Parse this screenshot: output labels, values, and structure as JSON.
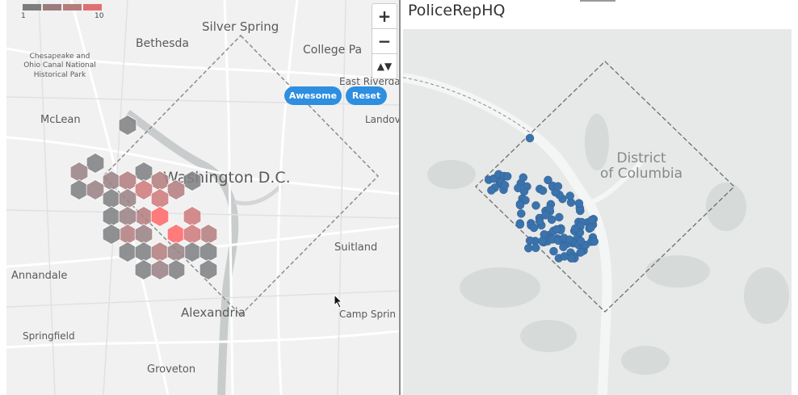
{
  "left_map": {
    "places": [
      {
        "name": "Silver Spring"
      },
      {
        "name": "Bethesda"
      },
      {
        "name": "College Pa"
      },
      {
        "name": "Chesapeake and"
      },
      {
        "name": "Ohio Canal National"
      },
      {
        "name": "Historical Park"
      },
      {
        "name": "East Riverda"
      },
      {
        "name": "McLean"
      },
      {
        "name": "Landov"
      },
      {
        "name": "Washington D.C."
      },
      {
        "name": "Suitland"
      },
      {
        "name": "Annandale"
      },
      {
        "name": "Alexandria"
      },
      {
        "name": "Camp Sprin"
      },
      {
        "name": "Springfield"
      },
      {
        "name": "Groveton"
      }
    ],
    "legend": {
      "min_label": "1",
      "max_label": "10",
      "colors": [
        "#7d7d7d",
        "#9a7c7c",
        "#b57c7c",
        "#e07070"
      ]
    },
    "zoom": {
      "in": "+",
      "out": "−",
      "compass": "▲▼"
    },
    "buttons": {
      "awesome": "Awesome",
      "reset": "Reset"
    },
    "hex_colors": {
      "gray": "#7f8284",
      "mid1": "#9b8486",
      "mid2": "#b58081",
      "mid3": "#cf7c7d",
      "hot": "#ff6a6a"
    }
  },
  "right_panel": {
    "title": "PoliceRepHQ",
    "region_label_line1": "District",
    "region_label_line2": "of Columbia",
    "point_color": "#3b73ad",
    "point_count": 110
  }
}
